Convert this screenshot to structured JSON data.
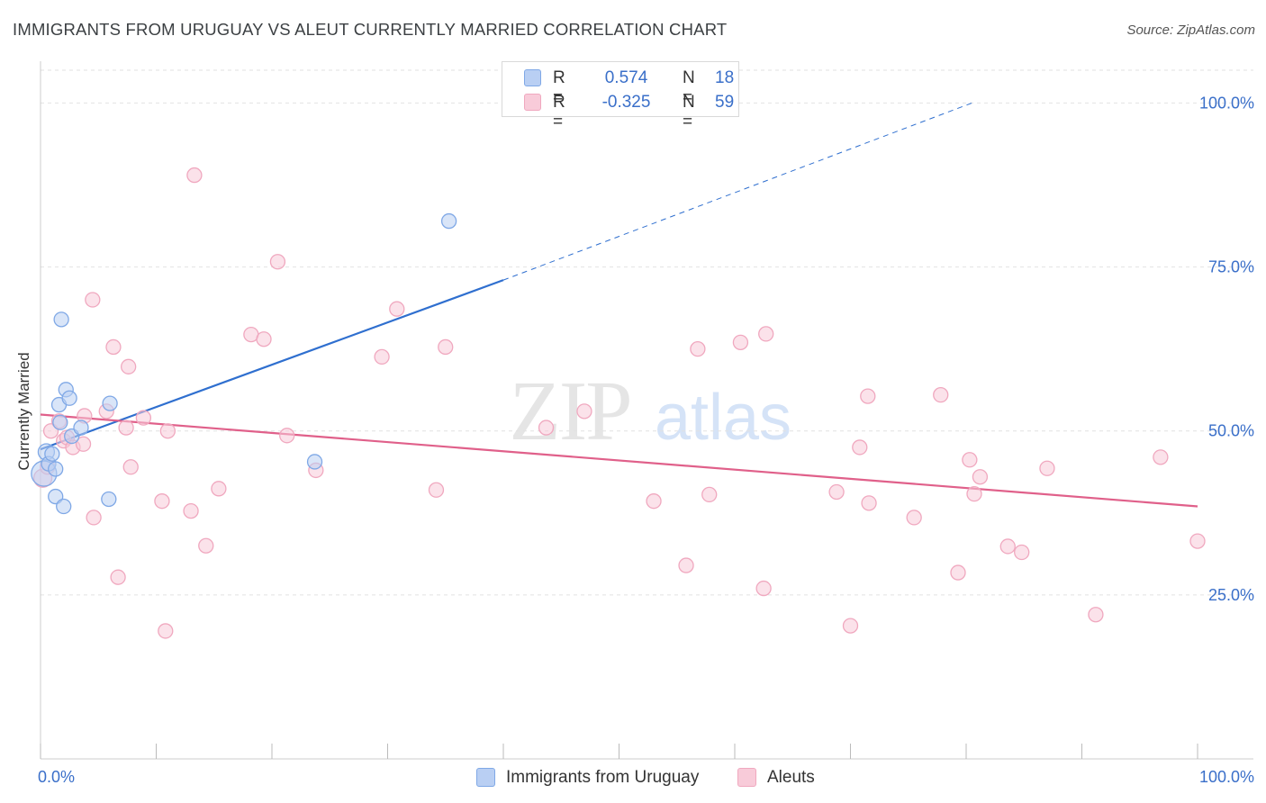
{
  "title": "IMMIGRANTS FROM URUGUAY VS ALEUT CURRENTLY MARRIED CORRELATION CHART",
  "source": "Source: ZipAtlas.com",
  "watermark": {
    "zip": "ZIP",
    "atlas": "atlas"
  },
  "legend": {
    "rows": [
      {
        "r_label": "R =",
        "r_value": "0.574",
        "n_label": "N =",
        "n_value": "18"
      },
      {
        "r_label": "R =",
        "r_value": "-0.325",
        "n_label": "N =",
        "n_value": "59"
      }
    ]
  },
  "chart_data": {
    "type": "scatter",
    "xlabel": "",
    "ylabel": "Currently Married",
    "xlim": [
      0,
      100
    ],
    "ylim": [
      0,
      105
    ],
    "x_tick_labels": [
      "0.0%",
      "100.0%"
    ],
    "y_tick_labels": [
      "25.0%",
      "50.0%",
      "75.0%",
      "100.0%"
    ],
    "y_ticks": [
      25,
      50,
      75,
      100
    ],
    "grid": true,
    "legend_position": "bottom",
    "series": [
      {
        "name": "Immigrants from Uruguay",
        "color": "#7fa8e6",
        "fill": "#b9cff3",
        "trend_color": "#2f6fcf",
        "r": 0.574,
        "n": 18,
        "trend": {
          "x": [
            0,
            40
          ],
          "y": [
            47.2,
            73.0
          ],
          "dashed_to": [
            80.5,
            100
          ]
        },
        "points": [
          [
            0.3,
            43.5,
            14
          ],
          [
            0.5,
            46.8,
            9
          ],
          [
            0.7,
            45.0,
            8
          ],
          [
            1.0,
            46.5,
            8
          ],
          [
            1.3,
            44.2,
            8
          ],
          [
            1.6,
            54.0,
            8
          ],
          [
            1.3,
            40.0,
            8
          ],
          [
            1.7,
            51.3,
            8
          ],
          [
            2.0,
            38.5,
            8
          ],
          [
            2.2,
            56.3,
            8
          ],
          [
            2.5,
            55.0,
            8
          ],
          [
            2.7,
            49.2,
            8
          ],
          [
            1.8,
            67.0,
            8
          ],
          [
            3.5,
            50.5,
            8
          ],
          [
            6.0,
            54.2,
            8
          ],
          [
            5.9,
            39.6,
            8
          ],
          [
            23.7,
            45.3,
            8
          ],
          [
            35.3,
            82.0,
            8
          ]
        ]
      },
      {
        "name": "Aleuts",
        "color": "#f0a8bf",
        "fill": "#f8cbd9",
        "trend_color": "#e0608a",
        "r": -0.325,
        "n": 59,
        "trend": {
          "x": [
            0,
            100
          ],
          "y": [
            52.5,
            38.5
          ]
        },
        "points": [
          [
            0.2,
            42.8,
            10
          ],
          [
            0.6,
            44.5,
            8
          ],
          [
            0.9,
            50.0,
            8
          ],
          [
            1.6,
            51.5,
            8
          ],
          [
            2.0,
            48.5,
            8
          ],
          [
            2.3,
            49.0,
            8
          ],
          [
            2.8,
            47.5,
            8
          ],
          [
            3.8,
            52.3,
            8
          ],
          [
            3.7,
            48.0,
            8
          ],
          [
            4.6,
            36.8,
            8
          ],
          [
            4.5,
            70.0,
            8
          ],
          [
            5.7,
            53.0,
            8
          ],
          [
            6.3,
            62.8,
            8
          ],
          [
            6.7,
            27.7,
            8
          ],
          [
            7.4,
            50.5,
            8
          ],
          [
            7.6,
            59.8,
            8
          ],
          [
            7.8,
            44.5,
            8
          ],
          [
            8.9,
            52.0,
            8
          ],
          [
            10.5,
            39.3,
            8
          ],
          [
            10.8,
            19.5,
            8
          ],
          [
            11.0,
            50.0,
            8
          ],
          [
            13.0,
            37.8,
            8
          ],
          [
            13.3,
            89.0,
            8
          ],
          [
            14.3,
            32.5,
            8
          ],
          [
            15.4,
            41.2,
            8
          ],
          [
            18.2,
            64.7,
            8
          ],
          [
            19.3,
            64.0,
            8
          ],
          [
            20.5,
            75.8,
            8
          ],
          [
            21.3,
            49.3,
            8
          ],
          [
            23.8,
            44.0,
            8
          ],
          [
            29.5,
            61.3,
            8
          ],
          [
            30.8,
            68.6,
            8
          ],
          [
            34.2,
            41.0,
            8
          ],
          [
            35.0,
            62.8,
            8
          ],
          [
            43.7,
            50.5,
            8
          ],
          [
            47.0,
            53.0,
            8
          ],
          [
            53.0,
            39.3,
            8
          ],
          [
            55.8,
            29.5,
            8
          ],
          [
            56.8,
            62.5,
            8
          ],
          [
            57.8,
            40.3,
            8
          ],
          [
            60.5,
            63.5,
            8
          ],
          [
            62.5,
            26.0,
            8
          ],
          [
            62.7,
            64.8,
            8
          ],
          [
            68.8,
            40.7,
            8
          ],
          [
            70.0,
            20.3,
            8
          ],
          [
            70.8,
            47.5,
            8
          ],
          [
            71.5,
            55.3,
            8
          ],
          [
            71.6,
            39.0,
            8
          ],
          [
            75.5,
            36.8,
            8
          ],
          [
            77.8,
            55.5,
            8
          ],
          [
            79.3,
            28.4,
            8
          ],
          [
            80.3,
            45.6,
            8
          ],
          [
            80.7,
            40.4,
            8
          ],
          [
            81.2,
            43.0,
            8
          ],
          [
            83.6,
            32.4,
            8
          ],
          [
            84.8,
            31.5,
            8
          ],
          [
            87.0,
            44.3,
            8
          ],
          [
            91.2,
            22.0,
            8
          ],
          [
            96.8,
            46.0,
            8
          ],
          [
            100.0,
            33.2,
            8
          ]
        ]
      }
    ]
  }
}
